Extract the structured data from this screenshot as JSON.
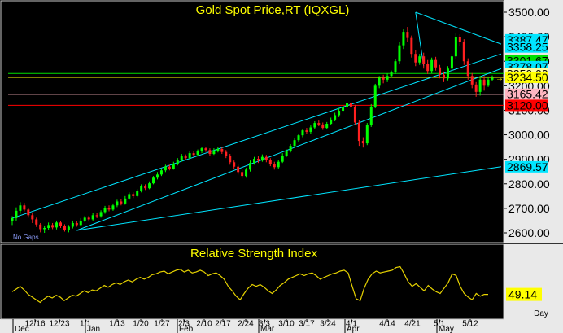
{
  "chart_data": [
    {
      "type": "candlestick",
      "title": "Gold Spot Price,RT (IQXGL)",
      "ylim": [
        2580,
        3500
      ],
      "y_ticks": [
        "3500.00",
        "3400.00",
        "3300.00",
        "3200.00",
        "3100.00",
        "3000.00",
        "2900.00",
        "2800.00",
        "2700.00",
        "2600.00"
      ],
      "x_tick_labels": [
        "12/16",
        "12/23",
        "1/1",
        "1/13",
        "1/20",
        "1/27",
        "2/3",
        "2/10",
        "2/17",
        "2/24",
        "3/3",
        "3/10",
        "3/17",
        "3/24",
        "4/1",
        "4/14",
        "4/21",
        "5/1",
        "5/12"
      ],
      "month_labels": [
        "Dec",
        "Jan",
        "Feb",
        "Mar",
        "Apr",
        "May"
      ],
      "annotation": "No Gaps",
      "price_tags": [
        {
          "value": "3387.47",
          "bg": "#00e5ff"
        },
        {
          "value": "3358.25",
          "bg": "#00e5ff"
        },
        {
          "value": "3301.67",
          "bg": "#00e000"
        },
        {
          "value": "3278.07",
          "bg": "#00e5ff"
        },
        {
          "value": "3250.00",
          "bg": "#ffffa0"
        },
        {
          "value": "3234.50",
          "bg": "#ffff00"
        },
        {
          "value": "3165.42",
          "bg": "#ffb6c1"
        },
        {
          "value": "3120.00",
          "bg": "#ff0000"
        },
        {
          "value": "2869.57",
          "bg": "#00e5ff"
        }
      ],
      "horizontal_lines": [
        {
          "value": 3250,
          "color": "#00e000"
        },
        {
          "value": 3234.5,
          "color": "#ffff00"
        },
        {
          "value": 3165,
          "color": "#ffb6c1"
        },
        {
          "value": 3120,
          "color": "#ff0000"
        }
      ],
      "trend_lines": [
        {
          "from": [
            0,
            2660
          ],
          "to": [
            123,
            3330
          ],
          "color": "#00e5ff"
        },
        {
          "from": [
            16,
            2610
          ],
          "to": [
            123,
            3270
          ],
          "color": "#00e5ff"
        },
        {
          "from": [
            16,
            2610
          ],
          "to": [
            123,
            2870
          ],
          "color": "#00e5ff"
        },
        {
          "from": [
            100,
            3500
          ],
          "to": [
            123,
            3370
          ],
          "color": "#00e5ff"
        },
        {
          "from": [
            100,
            3500
          ],
          "to": [
            102,
            3280
          ],
          "color": "#00e5ff"
        }
      ],
      "candles": [
        [
          2648,
          2660,
          2632,
          2668
        ],
        [
          2660,
          2690,
          2650,
          2704
        ],
        [
          2690,
          2712,
          2678,
          2725
        ],
        [
          2712,
          2695,
          2688,
          2722
        ],
        [
          2695,
          2672,
          2662,
          2701
        ],
        [
          2672,
          2655,
          2640,
          2680
        ],
        [
          2655,
          2634,
          2624,
          2662
        ],
        [
          2634,
          2615,
          2602,
          2640
        ],
        [
          2615,
          2620,
          2600,
          2630
        ],
        [
          2620,
          2632,
          2612,
          2642
        ],
        [
          2632,
          2622,
          2615,
          2640
        ],
        [
          2622,
          2642,
          2614,
          2650
        ],
        [
          2642,
          2628,
          2620,
          2648
        ],
        [
          2628,
          2612,
          2605,
          2635
        ],
        [
          2612,
          2625,
          2602,
          2632
        ],
        [
          2625,
          2640,
          2618,
          2650
        ],
        [
          2640,
          2632,
          2625,
          2648
        ],
        [
          2632,
          2650,
          2626,
          2660
        ],
        [
          2650,
          2662,
          2644,
          2670
        ],
        [
          2662,
          2655,
          2646,
          2670
        ],
        [
          2655,
          2672,
          2650,
          2680
        ],
        [
          2672,
          2668,
          2660,
          2682
        ],
        [
          2668,
          2685,
          2662,
          2692
        ],
        [
          2685,
          2702,
          2678,
          2710
        ],
        [
          2702,
          2695,
          2688,
          2712
        ],
        [
          2695,
          2712,
          2690,
          2720
        ],
        [
          2712,
          2728,
          2705,
          2735
        ],
        [
          2728,
          2720,
          2712,
          2738
        ],
        [
          2720,
          2740,
          2715,
          2750
        ],
        [
          2740,
          2758,
          2735,
          2765
        ],
        [
          2758,
          2750,
          2742,
          2765
        ],
        [
          2750,
          2770,
          2745,
          2778
        ],
        [
          2770,
          2790,
          2765,
          2798
        ],
        [
          2790,
          2782,
          2775,
          2798
        ],
        [
          2782,
          2802,
          2778,
          2810
        ],
        [
          2802,
          2825,
          2798,
          2832
        ],
        [
          2825,
          2838,
          2818,
          2848
        ],
        [
          2838,
          2855,
          2832,
          2862
        ],
        [
          2855,
          2870,
          2848,
          2878
        ],
        [
          2870,
          2862,
          2855,
          2878
        ],
        [
          2862,
          2882,
          2858,
          2890
        ],
        [
          2882,
          2898,
          2875,
          2905
        ],
        [
          2898,
          2912,
          2890,
          2922
        ],
        [
          2912,
          2905,
          2898,
          2920
        ],
        [
          2905,
          2925,
          2900,
          2932
        ],
        [
          2925,
          2918,
          2910,
          2935
        ],
        [
          2918,
          2932,
          2912,
          2940
        ],
        [
          2932,
          2945,
          2925,
          2952
        ],
        [
          2945,
          2938,
          2930,
          2952
        ],
        [
          2938,
          2922,
          2915,
          2945
        ],
        [
          2922,
          2935,
          2918,
          2945
        ],
        [
          2935,
          2942,
          2928,
          2950
        ],
        [
          2942,
          2930,
          2922,
          2950
        ],
        [
          2930,
          2915,
          2905,
          2938
        ],
        [
          2915,
          2888,
          2878,
          2922
        ],
        [
          2888,
          2870,
          2862,
          2895
        ],
        [
          2870,
          2848,
          2838,
          2878
        ],
        [
          2848,
          2832,
          2822,
          2858
        ],
        [
          2832,
          2858,
          2825,
          2865
        ],
        [
          2858,
          2885,
          2850,
          2895
        ],
        [
          2885,
          2902,
          2878,
          2910
        ],
        [
          2902,
          2895,
          2885,
          2912
        ],
        [
          2895,
          2910,
          2890,
          2920
        ],
        [
          2910,
          2898,
          2888,
          2918
        ],
        [
          2898,
          2882,
          2872,
          2905
        ],
        [
          2882,
          2868,
          2858,
          2890
        ],
        [
          2868,
          2890,
          2860,
          2898
        ],
        [
          2890,
          2915,
          2885,
          2925
        ],
        [
          2915,
          2932,
          2910,
          2940
        ],
        [
          2932,
          2955,
          2928,
          2962
        ],
        [
          2955,
          2978,
          2948,
          2985
        ],
        [
          2978,
          2998,
          2972,
          3005
        ],
        [
          2998,
          3018,
          2990,
          3025
        ],
        [
          3018,
          3012,
          3005,
          3028
        ],
        [
          3012,
          3030,
          3005,
          3038
        ],
        [
          3030,
          3048,
          3025,
          3055
        ],
        [
          3048,
          3042,
          3035,
          3058
        ],
        [
          3042,
          3028,
          3020,
          3050
        ],
        [
          3028,
          3045,
          3022,
          3052
        ],
        [
          3045,
          3062,
          3040,
          3070
        ],
        [
          3062,
          3080,
          3055,
          3090
        ],
        [
          3080,
          3098,
          3072,
          3108
        ],
        [
          3098,
          3112,
          3092,
          3122
        ],
        [
          3112,
          3128,
          3105,
          3138
        ],
        [
          3128,
          3115,
          3108,
          3140
        ],
        [
          3115,
          3050,
          3040,
          3122
        ],
        [
          3050,
          2975,
          2955,
          3060
        ],
        [
          2975,
          2965,
          2948,
          2990
        ],
        [
          2965,
          3040,
          2958,
          3048
        ],
        [
          3040,
          3115,
          3032,
          3125
        ],
        [
          3115,
          3200,
          3108,
          3208
        ],
        [
          3200,
          3232,
          3190,
          3240
        ],
        [
          3232,
          3225,
          3210,
          3245
        ],
        [
          3225,
          3240,
          3215,
          3250
        ],
        [
          3240,
          3255,
          3232,
          3262
        ],
        [
          3255,
          3300,
          3248,
          3310
        ],
        [
          3300,
          3365,
          3290,
          3378
        ],
        [
          3365,
          3420,
          3350,
          3430
        ],
        [
          3420,
          3395,
          3380,
          3440
        ],
        [
          3395,
          3330,
          3315,
          3405
        ],
        [
          3330,
          3295,
          3280,
          3345
        ],
        [
          3295,
          3320,
          3285,
          3330
        ],
        [
          3320,
          3290,
          3270,
          3335
        ],
        [
          3290,
          3260,
          3248,
          3305
        ],
        [
          3260,
          3305,
          3250,
          3315
        ],
        [
          3305,
          3275,
          3262,
          3318
        ],
        [
          3275,
          3245,
          3230,
          3285
        ],
        [
          3245,
          3230,
          3215,
          3258
        ],
        [
          3230,
          3270,
          3222,
          3280
        ],
        [
          3270,
          3320,
          3262,
          3330
        ],
        [
          3320,
          3400,
          3310,
          3415
        ],
        [
          3400,
          3380,
          3360,
          3410
        ],
        [
          3380,
          3300,
          3285,
          3390
        ],
        [
          3300,
          3240,
          3225,
          3312
        ],
        [
          3240,
          3205,
          3190,
          3252
        ],
        [
          3205,
          3175,
          3155,
          3215
        ],
        [
          3175,
          3225,
          3160,
          3240
        ],
        [
          3225,
          3200,
          3180,
          3240
        ],
        [
          3200,
          3225,
          3195,
          3238
        ],
        [
          3225,
          3232,
          3218,
          3242
        ]
      ]
    },
    {
      "type": "line",
      "title": "Relative Strength Index",
      "ylim": [
        25,
        85
      ],
      "series": [
        {
          "name": "RSI",
          "color": "#e6d200",
          "values": [
            52,
            55,
            58,
            54,
            49,
            46,
            43,
            40,
            44,
            47,
            45,
            48,
            46,
            42,
            45,
            48,
            47,
            50,
            53,
            51,
            54,
            53,
            56,
            59,
            57,
            60,
            62,
            60,
            63,
            65,
            63,
            66,
            68,
            66,
            68,
            71,
            72,
            74,
            75,
            72,
            74,
            76,
            77,
            74,
            76,
            73,
            74,
            76,
            74,
            70,
            72,
            73,
            70,
            66,
            58,
            53,
            47,
            43,
            50,
            56,
            60,
            58,
            60,
            57,
            53,
            50,
            54,
            59,
            62,
            66,
            68,
            70,
            72,
            70,
            72,
            73,
            70,
            66,
            68,
            70,
            72,
            73,
            75,
            76,
            73,
            58,
            44,
            42,
            56,
            66,
            72,
            75,
            73,
            74,
            75,
            76,
            79,
            80,
            72,
            63,
            58,
            61,
            57,
            53,
            59,
            55,
            52,
            50,
            56,
            62,
            72,
            70,
            58,
            50,
            46,
            43,
            50,
            47,
            49,
            49
          ]
        }
      ],
      "last_value_tag": "49.14",
      "corner_label": "Day"
    }
  ]
}
